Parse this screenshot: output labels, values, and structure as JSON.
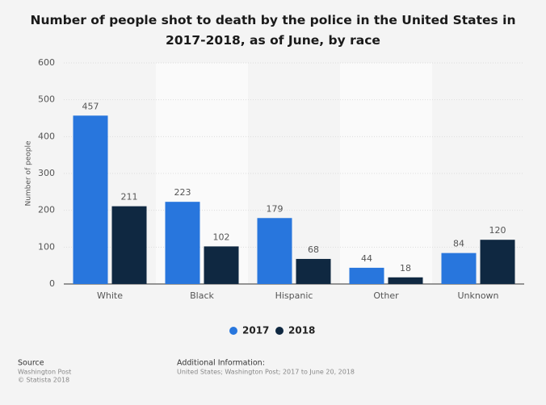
{
  "chart_data": {
    "type": "bar",
    "title": "Number of people shot to death by the police in the United States in 2017-2018, as of June, by race",
    "y_label": "Number of people",
    "categories": [
      "White",
      "Black",
      "Hispanic",
      "Other",
      "Unknown"
    ],
    "series": [
      {
        "name": "2017",
        "color": "#2876dd",
        "values": [
          457,
          223,
          179,
          44,
          84
        ]
      },
      {
        "name": "2018",
        "color": "#0f2841",
        "values": [
          211,
          102,
          68,
          18,
          120
        ]
      }
    ],
    "ylim": [
      0,
      600
    ],
    "yticks": [
      0,
      100,
      200,
      300,
      400,
      500,
      600
    ],
    "grid": true,
    "legend": "bottom"
  },
  "footer": {
    "source_title": "Source",
    "source_lines": [
      "Washington Post",
      "© Statista 2018"
    ],
    "info_title": "Additional Information:",
    "info_text": "United States; Washington Post; 2017 to June 20, 2018"
  }
}
